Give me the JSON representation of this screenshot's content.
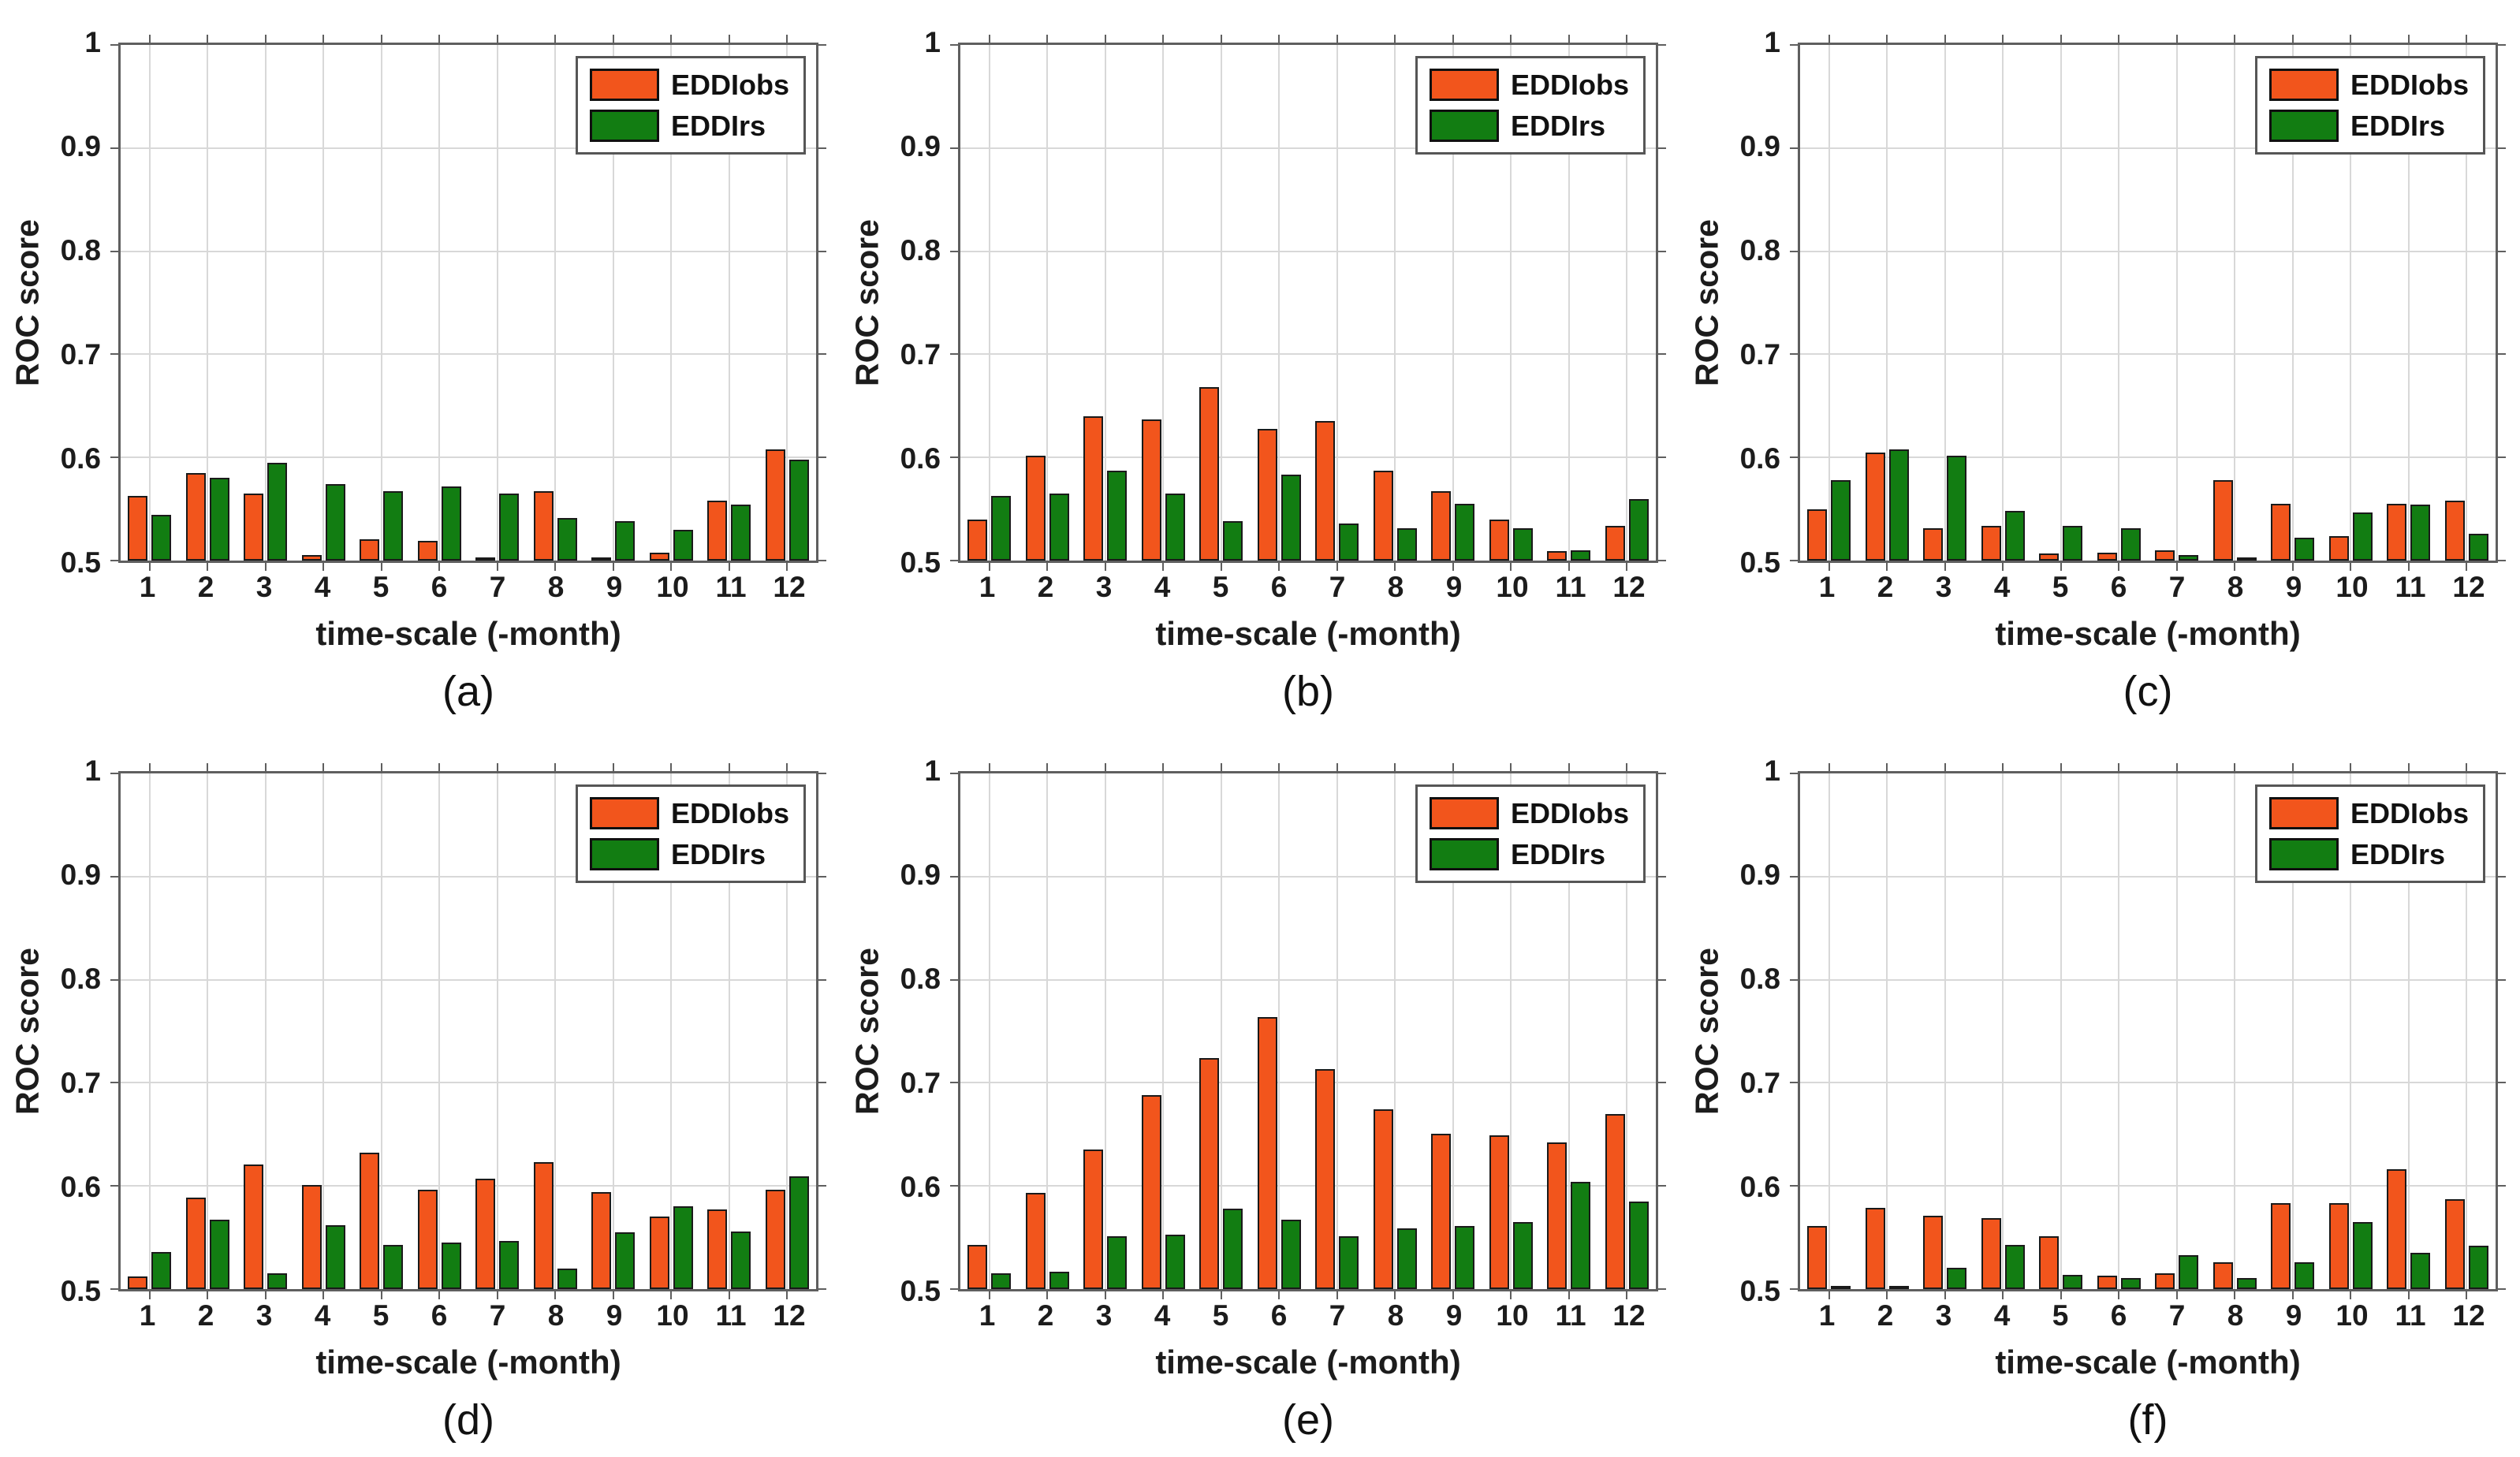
{
  "figure": {
    "ylabel": "ROC score",
    "xlabel": "time-scale (-month)",
    "background": "#ffffff",
    "grid": true,
    "grid_color": "#d8d8d8",
    "axis_color": "#5f5f5f",
    "legend_position": "top-right",
    "legend": [
      {
        "label": "EDDIobs",
        "color": "#F2551C"
      },
      {
        "label": "EDDIrs",
        "color": "#127D12"
      }
    ],
    "yticks": [
      {
        "label": "1",
        "value": 1.0
      },
      {
        "label": "0.9",
        "value": 0.9
      },
      {
        "label": "0.8",
        "value": 0.8
      },
      {
        "label": "0.7",
        "value": 0.7
      },
      {
        "label": "0.6",
        "value": 0.6
      },
      {
        "label": "0.5",
        "value": 0.5
      }
    ]
  },
  "chart_data": [
    {
      "type": "bar",
      "panel_label": "(a)",
      "xlabel": "time-scale (-month)",
      "ylabel": "ROC score",
      "ylim": [
        0.5,
        1.0
      ],
      "categories": [
        "1",
        "2",
        "3",
        "4",
        "5",
        "6",
        "7",
        "8",
        "9",
        "10",
        "11",
        "12"
      ],
      "series": [
        {
          "name": "EDDIobs",
          "color": "#F2551C",
          "values": [
            0.563,
            0.585,
            0.565,
            0.505,
            0.521,
            0.519,
            0.503,
            0.567,
            0.503,
            0.508,
            0.558,
            0.608
          ]
        },
        {
          "name": "EDDIrs",
          "color": "#127D12",
          "values": [
            0.544,
            0.58,
            0.595,
            0.574,
            0.567,
            0.572,
            0.565,
            0.541,
            0.538,
            0.53,
            0.554,
            0.598
          ]
        }
      ]
    },
    {
      "type": "bar",
      "panel_label": "(b)",
      "xlabel": "time-scale (-month)",
      "ylabel": "ROC score",
      "ylim": [
        0.5,
        1.0
      ],
      "categories": [
        "1",
        "2",
        "3",
        "4",
        "5",
        "6",
        "7",
        "8",
        "9",
        "10",
        "11",
        "12"
      ],
      "series": [
        {
          "name": "EDDIobs",
          "color": "#F2551C",
          "values": [
            0.54,
            0.602,
            0.64,
            0.637,
            0.668,
            0.628,
            0.635,
            0.587,
            0.567,
            0.54,
            0.509,
            0.534
          ]
        },
        {
          "name": "EDDIrs",
          "color": "#127D12",
          "values": [
            0.563,
            0.565,
            0.587,
            0.565,
            0.538,
            0.583,
            0.536,
            0.531,
            0.555,
            0.531,
            0.51,
            0.56
          ]
        }
      ]
    },
    {
      "type": "bar",
      "panel_label": "(c)",
      "xlabel": "time-scale (-month)",
      "ylabel": "ROC score",
      "ylim": [
        0.5,
        1.0
      ],
      "categories": [
        "1",
        "2",
        "3",
        "4",
        "5",
        "6",
        "7",
        "8",
        "9",
        "10",
        "11",
        "12"
      ],
      "series": [
        {
          "name": "EDDIobs",
          "color": "#F2551C",
          "values": [
            0.55,
            0.605,
            0.531,
            0.534,
            0.507,
            0.508,
            0.51,
            0.578,
            0.555,
            0.524,
            0.555,
            0.558
          ]
        },
        {
          "name": "EDDIrs",
          "color": "#127D12",
          "values": [
            0.578,
            0.608,
            0.602,
            0.548,
            0.534,
            0.531,
            0.505,
            0.502,
            0.522,
            0.547,
            0.554,
            0.526
          ]
        }
      ]
    },
    {
      "type": "bar",
      "panel_label": "(d)",
      "xlabel": "time-scale (-month)",
      "ylabel": "ROC score",
      "ylim": [
        0.5,
        1.0
      ],
      "categories": [
        "1",
        "2",
        "3",
        "4",
        "5",
        "6",
        "7",
        "8",
        "9",
        "10",
        "11",
        "12"
      ],
      "series": [
        {
          "name": "EDDIobs",
          "color": "#F2551C",
          "values": [
            0.512,
            0.589,
            0.621,
            0.601,
            0.632,
            0.596,
            0.607,
            0.623,
            0.594,
            0.57,
            0.577,
            0.596
          ]
        },
        {
          "name": "EDDIrs",
          "color": "#127D12",
          "values": [
            0.536,
            0.567,
            0.515,
            0.562,
            0.543,
            0.545,
            0.547,
            0.52,
            0.555,
            0.58,
            0.556,
            0.609
          ]
        }
      ]
    },
    {
      "type": "bar",
      "panel_label": "(e)",
      "xlabel": "time-scale (-month)",
      "ylabel": "ROC score",
      "ylim": [
        0.5,
        1.0
      ],
      "categories": [
        "1",
        "2",
        "3",
        "4",
        "5",
        "6",
        "7",
        "8",
        "9",
        "10",
        "11",
        "12"
      ],
      "series": [
        {
          "name": "EDDIobs",
          "color": "#F2551C",
          "values": [
            0.543,
            0.593,
            0.635,
            0.688,
            0.724,
            0.764,
            0.713,
            0.674,
            0.651,
            0.649,
            0.642,
            0.67
          ]
        },
        {
          "name": "EDDIrs",
          "color": "#127D12",
          "values": [
            0.515,
            0.517,
            0.551,
            0.553,
            0.578,
            0.567,
            0.551,
            0.559,
            0.561,
            0.565,
            0.604,
            0.585
          ]
        }
      ]
    },
    {
      "type": "bar",
      "panel_label": "(f)",
      "xlabel": "time-scale (-month)",
      "ylabel": "ROC score",
      "ylim": [
        0.5,
        1.0
      ],
      "categories": [
        "1",
        "2",
        "3",
        "4",
        "5",
        "6",
        "7",
        "8",
        "9",
        "10",
        "11",
        "12"
      ],
      "series": [
        {
          "name": "EDDIobs",
          "color": "#F2551C",
          "values": [
            0.561,
            0.579,
            0.571,
            0.569,
            0.551,
            0.513,
            0.515,
            0.526,
            0.583,
            0.583,
            0.616,
            0.587
          ]
        },
        {
          "name": "EDDIrs",
          "color": "#127D12",
          "values": [
            0.503,
            0.503,
            0.521,
            0.543,
            0.514,
            0.511,
            0.533,
            0.511,
            0.526,
            0.565,
            0.535,
            0.542
          ]
        }
      ]
    }
  ]
}
